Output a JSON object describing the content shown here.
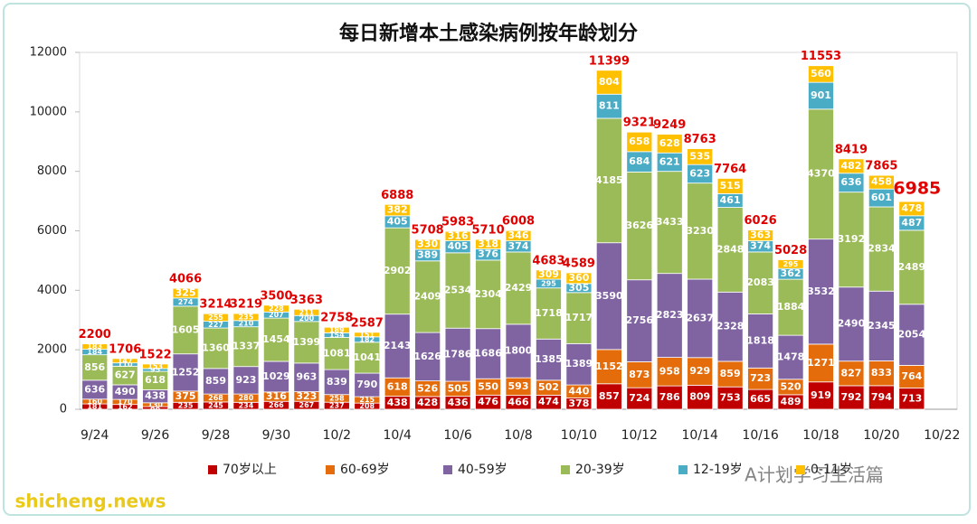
{
  "chart_data": {
    "type": "stacked-bar",
    "title": "每日新增本土感染病例按年龄划分",
    "categories": [
      "9/24",
      null,
      "9/26",
      null,
      "9/28",
      null,
      "9/30",
      null,
      "10/2",
      null,
      "10/4",
      null,
      "10/6",
      null,
      "10/8",
      null,
      "10/10",
      null,
      "10/12",
      null,
      "10/14",
      null,
      "10/16",
      null,
      "10/18",
      null,
      "10/20",
      null,
      "10/22"
    ],
    "series": [
      {
        "name": "70岁以上",
        "color": "#c00000",
        "values": [
          181,
          162,
          88,
          235,
          245,
          234,
          266,
          267,
          237,
          208,
          438,
          428,
          436,
          476,
          466,
          474,
          378,
          857,
          724,
          786,
          809,
          753,
          665,
          489,
          919,
          792,
          794,
          713,
          null
        ]
      },
      {
        "name": "60-69岁",
        "color": "#e46c0a",
        "values": [
          160,
          170,
          130,
          375,
          268,
          280,
          316,
          323,
          258,
          215,
          618,
          526,
          505,
          550,
          593,
          502,
          440,
          1152,
          873,
          958,
          929,
          859,
          723,
          520,
          1271,
          827,
          833,
          764,
          null
        ]
      },
      {
        "name": "40-59岁",
        "color": "#8064a2",
        "values": [
          636,
          490,
          438,
          1252,
          859,
          923,
          1029,
          963,
          839,
          790,
          2143,
          1626,
          1786,
          1686,
          1800,
          1385,
          1389,
          3590,
          2756,
          2823,
          2637,
          2328,
          1818,
          1478,
          3532,
          2490,
          2345,
          2054,
          null
        ]
      },
      {
        "name": "20-39岁",
        "color": "#9bbb59",
        "values": [
          856,
          627,
          618,
          1605,
          1360,
          1337,
          1454,
          1399,
          1081,
          1041,
          2902,
          2409,
          2534,
          2304,
          2429,
          1718,
          1717,
          4185,
          3626,
          3433,
          3230,
          2848,
          2083,
          1884,
          4370,
          3192,
          2834,
          2489,
          null
        ]
      },
      {
        "name": "12-19岁",
        "color": "#4bacc6",
        "values": [
          184,
          110,
          95,
          274,
          227,
          210,
          207,
          200,
          154,
          182,
          405,
          389,
          405,
          376,
          374,
          295,
          305,
          811,
          684,
          621,
          623,
          461,
          374,
          362,
          901,
          636,
          601,
          487,
          null
        ]
      },
      {
        "name": "0-11岁",
        "color": "#ffc000",
        "values": [
          183,
          147,
          153,
          325,
          255,
          235,
          228,
          211,
          189,
          151,
          382,
          330,
          316,
          318,
          346,
          309,
          360,
          804,
          658,
          628,
          535,
          515,
          363,
          295,
          560,
          482,
          458,
          478,
          null
        ]
      }
    ],
    "totals": [
      2200,
      1706,
      1522,
      4066,
      3214,
      3219,
      3500,
      3363,
      2758,
      2587,
      6888,
      5708,
      5983,
      5710,
      6008,
      4683,
      4589,
      11399,
      9321,
      9249,
      8763,
      7764,
      6026,
      5028,
      11553,
      8419,
      7865,
      6985,
      null
    ],
    "ylim": [
      0,
      12000
    ],
    "yticks": [
      0,
      2000,
      4000,
      6000,
      8000,
      10000,
      12000
    ],
    "grid": false,
    "legend": "bottom",
    "watermarks": [
      "A计划学习生活篇",
      "shicheng.news"
    ]
  }
}
